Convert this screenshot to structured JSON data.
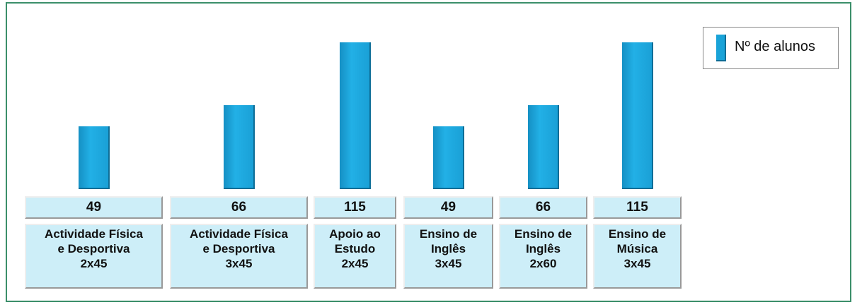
{
  "chart_data": {
    "type": "bar",
    "categories": [
      "Actividade Física\ne Desportiva\n2x45",
      "Actividade Física\ne Desportiva\n3x45",
      "Apoio ao\nEstudo\n2x45",
      "Ensino de\nInglês\n3x45",
      "Ensino de\nInglês\n2x60",
      "Ensino de\nMúsica\n3x45"
    ],
    "series": [
      {
        "name": "Nº de alunos",
        "color": "#1aa3d8",
        "values": [
          49,
          66,
          115,
          49,
          66,
          115
        ]
      }
    ],
    "legend": "top-right"
  }
}
